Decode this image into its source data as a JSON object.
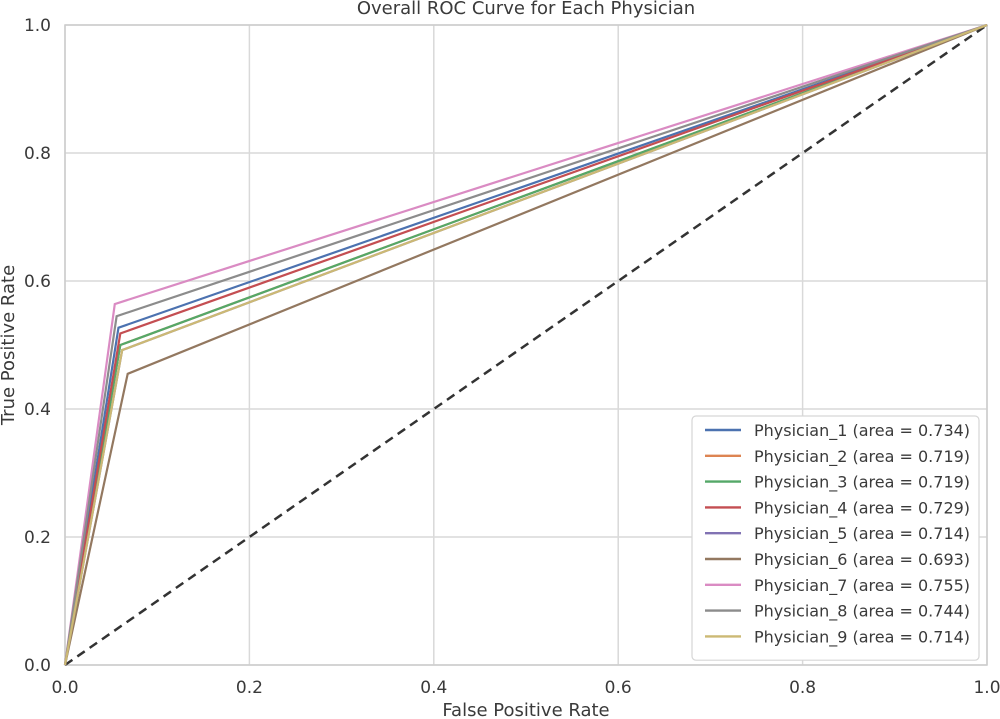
{
  "chart_data": {
    "type": "line",
    "title": "Overall ROC Curve for Each Physician",
    "xlabel": "False Positive Rate",
    "ylabel": "True Positive Rate",
    "xlim": [
      0.0,
      1.0
    ],
    "ylim": [
      0.0,
      1.0
    ],
    "xticks": [
      "0.0",
      "0.2",
      "0.4",
      "0.6",
      "0.8",
      "1.0"
    ],
    "yticks": [
      "0.0",
      "0.2",
      "0.4",
      "0.6",
      "0.8",
      "1.0"
    ],
    "grid": true,
    "legend_position": "lower-right",
    "series": [
      {
        "name": "Physician_1 (area = 0.734)",
        "color": "#4c72b0",
        "x": [
          0,
          0.058,
          1
        ],
        "y": [
          0,
          0.527,
          1
        ]
      },
      {
        "name": "Physician_2 (area = 0.719)",
        "color": "#dd8452",
        "x": [
          0,
          0.06,
          1
        ],
        "y": [
          0,
          0.5,
          1
        ]
      },
      {
        "name": "Physician_3 (area = 0.719)",
        "color": "#55a868",
        "x": [
          0,
          0.06,
          1
        ],
        "y": [
          0,
          0.5,
          1
        ]
      },
      {
        "name": "Physician_4 (area = 0.729)",
        "color": "#c44e52",
        "x": [
          0,
          0.06,
          1
        ],
        "y": [
          0,
          0.518,
          1
        ]
      },
      {
        "name": "Physician_5 (area = 0.714)",
        "color": "#8172b3",
        "x": [
          0,
          0.062,
          1
        ],
        "y": [
          0,
          0.492,
          1
        ]
      },
      {
        "name": "Physician_6 (area = 0.693)",
        "color": "#937860",
        "x": [
          0,
          0.068,
          1
        ],
        "y": [
          0,
          0.455,
          1
        ]
      },
      {
        "name": "Physician_7 (area = 0.755)",
        "color": "#da8bc3",
        "x": [
          0,
          0.054,
          1
        ],
        "y": [
          0,
          0.564,
          1
        ]
      },
      {
        "name": "Physician_8 (area = 0.744)",
        "color": "#8c8c8c",
        "x": [
          0,
          0.056,
          1
        ],
        "y": [
          0,
          0.545,
          1
        ]
      },
      {
        "name": "Physician_9 (area = 0.714)",
        "color": "#ccb974",
        "x": [
          0,
          0.062,
          1
        ],
        "y": [
          0,
          0.492,
          1
        ]
      }
    ],
    "reference_line": {
      "x": [
        0,
        1
      ],
      "y": [
        0,
        1
      ],
      "color": "#333333",
      "style": "dashed"
    }
  }
}
